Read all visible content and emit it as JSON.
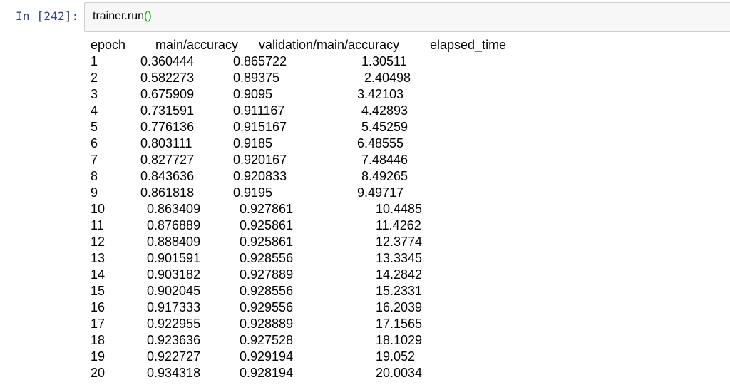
{
  "cell": {
    "prompt": "In [242]:",
    "code_fn": "trainer.run",
    "code_parens": "()"
  },
  "output": {
    "headers": [
      "epoch",
      "main/accuracy",
      "validation/main/accuracy",
      "elapsed_time"
    ],
    "rows": [
      [
        "1",
        "0.360444",
        "0.865722",
        "1.30511"
      ],
      [
        "2",
        "0.582273",
        "0.89375",
        "2.40498"
      ],
      [
        "3",
        "0.675909",
        "0.9095",
        "3.42103"
      ],
      [
        "4",
        "0.731591",
        "0.911167",
        "4.42893"
      ],
      [
        "5",
        "0.776136",
        "0.915167",
        "5.45259"
      ],
      [
        "6",
        "0.803111",
        "0.9185",
        "6.48555"
      ],
      [
        "7",
        "0.827727",
        "0.920167",
        "7.48446"
      ],
      [
        "8",
        "0.843636",
        "0.920833",
        "8.49265"
      ],
      [
        "9",
        "0.861818",
        "0.9195",
        "9.49717"
      ],
      [
        "10",
        "0.863409",
        "0.927861",
        "10.4485"
      ],
      [
        "11",
        "0.876889",
        "0.925861",
        "11.4262"
      ],
      [
        "12",
        "0.888409",
        "0.925861",
        "12.3774"
      ],
      [
        "13",
        "0.901591",
        "0.928556",
        "13.3345"
      ],
      [
        "14",
        "0.903182",
        "0.927889",
        "14.2842"
      ],
      [
        "15",
        "0.902045",
        "0.928556",
        "15.2331"
      ],
      [
        "16",
        "0.917333",
        "0.929556",
        "16.2039"
      ],
      [
        "17",
        "0.922955",
        "0.928889",
        "17.1565"
      ],
      [
        "18",
        "0.923636",
        "0.927528",
        "18.1029"
      ],
      [
        "19",
        "0.922727",
        "0.929194",
        "19.052"
      ],
      [
        "20",
        "0.934318",
        "0.928194",
        "20.0034"
      ]
    ]
  }
}
